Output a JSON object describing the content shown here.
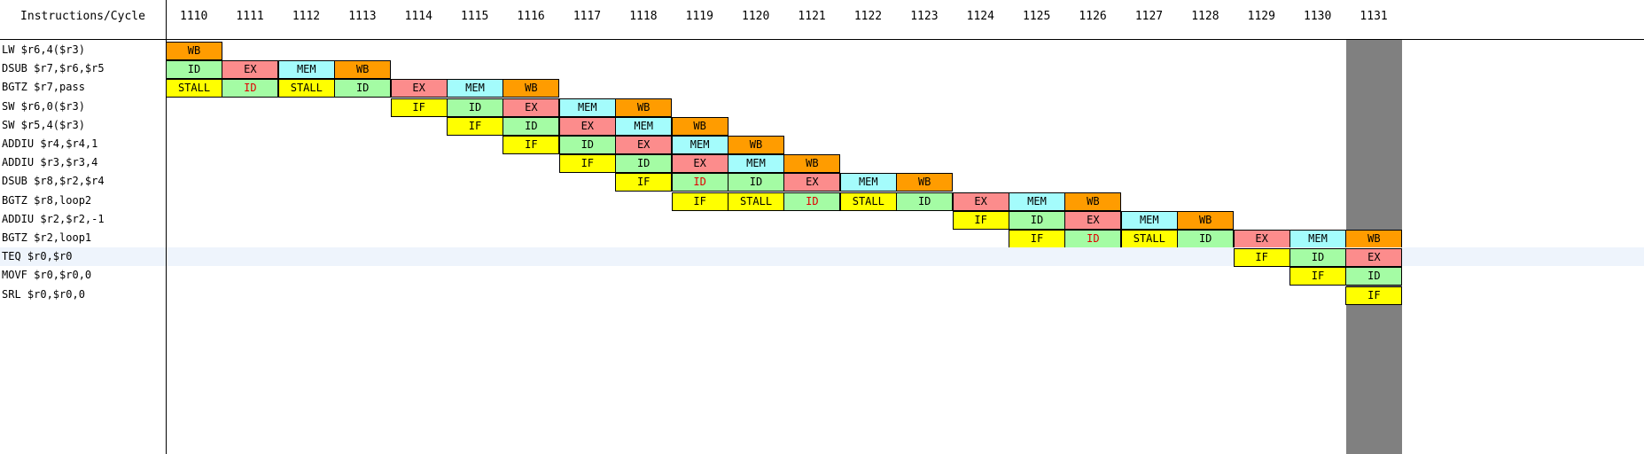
{
  "header": {
    "corner_label": "Instructions/Cycle",
    "cycles": [
      "1110",
      "1111",
      "1112",
      "1113",
      "1114",
      "1115",
      "1116",
      "1117",
      "1118",
      "1119",
      "1120",
      "1121",
      "1122",
      "1123",
      "1124",
      "1125",
      "1126",
      "1127",
      "1128",
      "1129",
      "1130",
      "1131"
    ],
    "highlighted_cycle": "1131"
  },
  "colors": {
    "IF": "#ffff00",
    "ID": "#a4fca4",
    "EX": "#fc8c8c",
    "MEM": "#a4fcfc",
    "WB": "#ff9c00",
    "STALL": "#ffff00",
    "stall_id_text": "#e00000",
    "highlight_column": "#808080",
    "selected_row": "#eef4fc"
  },
  "selected_row_index": 11,
  "instructions": [
    {
      "label": "LW $r6,4($r3)",
      "stages": [
        {
          "cycle": "1110",
          "stage": "WB"
        }
      ]
    },
    {
      "label": "DSUB $r7,$r6,$r5",
      "stages": [
        {
          "cycle": "1110",
          "stage": "ID"
        },
        {
          "cycle": "1111",
          "stage": "EX"
        },
        {
          "cycle": "1112",
          "stage": "MEM"
        },
        {
          "cycle": "1113",
          "stage": "WB"
        }
      ]
    },
    {
      "label": "BGTZ $r7,pass",
      "stages": [
        {
          "cycle": "1110",
          "stage": "STALL"
        },
        {
          "cycle": "1111",
          "stage": "ID",
          "stalled": true
        },
        {
          "cycle": "1112",
          "stage": "STALL"
        },
        {
          "cycle": "1113",
          "stage": "ID"
        },
        {
          "cycle": "1114",
          "stage": "EX"
        },
        {
          "cycle": "1115",
          "stage": "MEM"
        },
        {
          "cycle": "1116",
          "stage": "WB"
        }
      ]
    },
    {
      "label": "SW $r6,0($r3)",
      "stages": [
        {
          "cycle": "1114",
          "stage": "IF"
        },
        {
          "cycle": "1115",
          "stage": "ID"
        },
        {
          "cycle": "1116",
          "stage": "EX"
        },
        {
          "cycle": "1117",
          "stage": "MEM"
        },
        {
          "cycle": "1118",
          "stage": "WB"
        }
      ]
    },
    {
      "label": "SW $r5,4($r3)",
      "stages": [
        {
          "cycle": "1115",
          "stage": "IF"
        },
        {
          "cycle": "1116",
          "stage": "ID"
        },
        {
          "cycle": "1117",
          "stage": "EX"
        },
        {
          "cycle": "1118",
          "stage": "MEM"
        },
        {
          "cycle": "1119",
          "stage": "WB"
        }
      ]
    },
    {
      "label": "ADDIU $r4,$r4,1",
      "stages": [
        {
          "cycle": "1116",
          "stage": "IF"
        },
        {
          "cycle": "1117",
          "stage": "ID"
        },
        {
          "cycle": "1118",
          "stage": "EX"
        },
        {
          "cycle": "1119",
          "stage": "MEM"
        },
        {
          "cycle": "1120",
          "stage": "WB"
        }
      ]
    },
    {
      "label": "ADDIU $r3,$r3,4",
      "stages": [
        {
          "cycle": "1117",
          "stage": "IF"
        },
        {
          "cycle": "1118",
          "stage": "ID"
        },
        {
          "cycle": "1119",
          "stage": "EX"
        },
        {
          "cycle": "1120",
          "stage": "MEM"
        },
        {
          "cycle": "1121",
          "stage": "WB"
        }
      ]
    },
    {
      "label": "DSUB $r8,$r2,$r4",
      "stages": [
        {
          "cycle": "1118",
          "stage": "IF"
        },
        {
          "cycle": "1119",
          "stage": "ID",
          "stalled": true
        },
        {
          "cycle": "1120",
          "stage": "ID"
        },
        {
          "cycle": "1121",
          "stage": "EX"
        },
        {
          "cycle": "1122",
          "stage": "MEM"
        },
        {
          "cycle": "1123",
          "stage": "WB"
        }
      ]
    },
    {
      "label": "BGTZ $r8,loop2",
      "stages": [
        {
          "cycle": "1119",
          "stage": "IF"
        },
        {
          "cycle": "1120",
          "stage": "STALL"
        },
        {
          "cycle": "1121",
          "stage": "ID",
          "stalled": true
        },
        {
          "cycle": "1122",
          "stage": "STALL"
        },
        {
          "cycle": "1123",
          "stage": "ID"
        },
        {
          "cycle": "1124",
          "stage": "EX"
        },
        {
          "cycle": "1125",
          "stage": "MEM"
        },
        {
          "cycle": "1126",
          "stage": "WB"
        }
      ]
    },
    {
      "label": "ADDIU $r2,$r2,-1",
      "stages": [
        {
          "cycle": "1124",
          "stage": "IF"
        },
        {
          "cycle": "1125",
          "stage": "ID"
        },
        {
          "cycle": "1126",
          "stage": "EX"
        },
        {
          "cycle": "1127",
          "stage": "MEM"
        },
        {
          "cycle": "1128",
          "stage": "WB"
        }
      ]
    },
    {
      "label": "BGTZ $r2,loop1",
      "stages": [
        {
          "cycle": "1125",
          "stage": "IF"
        },
        {
          "cycle": "1126",
          "stage": "ID",
          "stalled": true
        },
        {
          "cycle": "1127",
          "stage": "STALL"
        },
        {
          "cycle": "1128",
          "stage": "ID"
        },
        {
          "cycle": "1129",
          "stage": "EX"
        },
        {
          "cycle": "1130",
          "stage": "MEM"
        },
        {
          "cycle": "1131",
          "stage": "WB"
        }
      ]
    },
    {
      "label": "TEQ $r0,$r0",
      "stages": [
        {
          "cycle": "1129",
          "stage": "IF"
        },
        {
          "cycle": "1130",
          "stage": "ID"
        },
        {
          "cycle": "1131",
          "stage": "EX"
        }
      ]
    },
    {
      "label": "MOVF $r0,$r0,0",
      "stages": [
        {
          "cycle": "1130",
          "stage": "IF"
        },
        {
          "cycle": "1131",
          "stage": "ID"
        }
      ]
    },
    {
      "label": "SRL $r0,$r0,0",
      "stages": [
        {
          "cycle": "1131",
          "stage": "IF"
        }
      ]
    }
  ]
}
